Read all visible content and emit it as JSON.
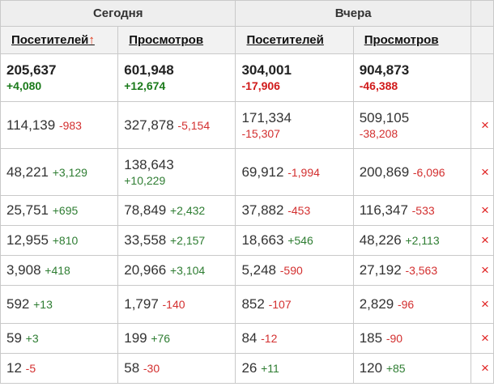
{
  "headers": {
    "today": "Сегодня",
    "yesterday": "Вчера",
    "visitors_today": "Посетителей",
    "sort_arrow": "↑",
    "views_today": "Просмотров",
    "visitors_yesterday": "Посетителей",
    "views_yesterday": "Просмотров"
  },
  "totals": {
    "visitors_today": {
      "value": "205,637",
      "delta": "+4,080"
    },
    "views_today": {
      "value": "601,948",
      "delta": "+12,674"
    },
    "visitors_yesterday": {
      "value": "304,001",
      "delta": "-17,906"
    },
    "views_yesterday": {
      "value": "904,873",
      "delta": "-46,388"
    }
  },
  "rows": [
    {
      "visitors_today": {
        "value": "114,139",
        "delta": "-983"
      },
      "views_today": {
        "value": "327,878",
        "delta": "-5,154"
      },
      "visitors_yesterday": {
        "value": "171,334",
        "delta": "-15,307"
      },
      "views_yesterday": {
        "value": "509,105",
        "delta": "-38,208"
      },
      "delete": "×"
    },
    {
      "visitors_today": {
        "value": "48,221",
        "delta": "+3,129"
      },
      "views_today": {
        "value": "138,643",
        "delta": "+10,229"
      },
      "visitors_yesterday": {
        "value": "69,912",
        "delta": "-1,994"
      },
      "views_yesterday": {
        "value": "200,869",
        "delta": "-6,096"
      },
      "delete": "×"
    },
    {
      "visitors_today": {
        "value": "25,751",
        "delta": "+695"
      },
      "views_today": {
        "value": "78,849",
        "delta": "+2,432"
      },
      "visitors_yesterday": {
        "value": "37,882",
        "delta": "-453"
      },
      "views_yesterday": {
        "value": "116,347",
        "delta": "-533"
      },
      "delete": "×"
    },
    {
      "visitors_today": {
        "value": "12,955",
        "delta": "+810"
      },
      "views_today": {
        "value": "33,558",
        "delta": "+2,157"
      },
      "visitors_yesterday": {
        "value": "18,663",
        "delta": "+546"
      },
      "views_yesterday": {
        "value": "48,226",
        "delta": "+2,113"
      },
      "delete": "×"
    },
    {
      "visitors_today": {
        "value": "3,908",
        "delta": "+418"
      },
      "views_today": {
        "value": "20,966",
        "delta": "+3,104"
      },
      "visitors_yesterday": {
        "value": "5,248",
        "delta": "-590"
      },
      "views_yesterday": {
        "value": "27,192",
        "delta": "-3,563"
      },
      "delete": "×"
    },
    {
      "visitors_today": {
        "value": "592",
        "delta": "+13"
      },
      "views_today": {
        "value": "1,797",
        "delta": "-140"
      },
      "visitors_yesterday": {
        "value": "852",
        "delta": "-107"
      },
      "views_yesterday": {
        "value": "2,829",
        "delta": "-96"
      },
      "delete": "×"
    },
    {
      "visitors_today": {
        "value": "59",
        "delta": "+3"
      },
      "views_today": {
        "value": "199",
        "delta": "+76"
      },
      "visitors_yesterday": {
        "value": "84",
        "delta": "-12"
      },
      "views_yesterday": {
        "value": "185",
        "delta": "-90"
      },
      "delete": "×"
    },
    {
      "visitors_today": {
        "value": "12",
        "delta": "-5"
      },
      "views_today": {
        "value": "58",
        "delta": "-30"
      },
      "visitors_yesterday": {
        "value": "26",
        "delta": "+11"
      },
      "views_yesterday": {
        "value": "120",
        "delta": "+85"
      },
      "delete": "×"
    }
  ],
  "colors": {
    "positive": "#2e7d32",
    "negative": "#d32f2f",
    "header_bg": "#eeeeee",
    "border": "#c9c9c9",
    "delete": "#e02020"
  }
}
